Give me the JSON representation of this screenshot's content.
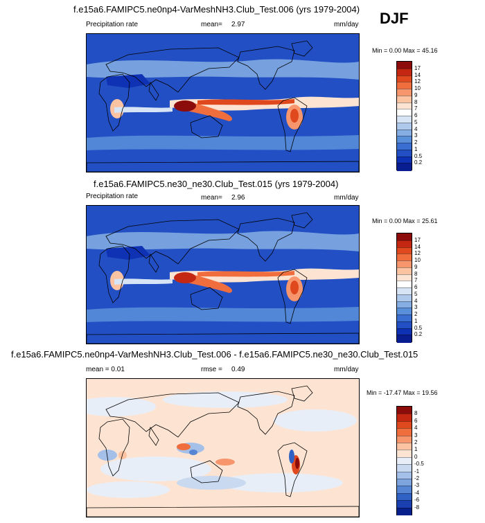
{
  "season": "DJF",
  "panels": [
    {
      "title": "f.e15a6.FAMIPC5.ne0np4-VarMeshNH3.Club_Test.006 (yrs 1979-2004)",
      "left_label": "Precipitation rate",
      "mean_label": "mean=",
      "mean_value": "2.97",
      "units": "mm/day",
      "minmax": "Min =  0.00 Max = 45.16",
      "colorbar": {
        "labels": [
          "17",
          "14",
          "12",
          "10",
          "9",
          "8",
          "7",
          "6",
          "5",
          "4",
          "3",
          "2",
          "1",
          "0.5",
          "0.2"
        ],
        "colors": [
          "#8c0c0c",
          "#c52812",
          "#e0481e",
          "#f06e3e",
          "#f7966c",
          "#fbc3a2",
          "#fde4d2",
          "#ffffff",
          "#d6e4f5",
          "#afc9ec",
          "#86aee3",
          "#5a8fd9",
          "#3a6ed0",
          "#2250c4",
          "#0f31b3",
          "#081d8f"
        ]
      },
      "mean_precip": 2.97
    },
    {
      "title": "f.e15a6.FAMIPC5.ne30_ne30.Club_Test.015 (yrs 1979-2004)",
      "left_label": "Precipitation rate",
      "mean_label": "mean=",
      "mean_value": "2.96",
      "units": "mm/day",
      "minmax": "Min =  0.00 Max = 25.61",
      "colorbar": {
        "labels": [
          "17",
          "14",
          "12",
          "10",
          "9",
          "8",
          "7",
          "6",
          "5",
          "4",
          "3",
          "2",
          "1",
          "0.5",
          "0.2"
        ],
        "colors": [
          "#8c0c0c",
          "#c52812",
          "#e0481e",
          "#f06e3e",
          "#f7966c",
          "#fbc3a2",
          "#fde4d2",
          "#ffffff",
          "#d6e4f5",
          "#afc9ec",
          "#86aee3",
          "#5a8fd9",
          "#3a6ed0",
          "#2250c4",
          "#0f31b3",
          "#081d8f"
        ]
      },
      "mean_precip": 2.96
    },
    {
      "title": "f.e15a6.FAMIPC5.ne0np4-VarMeshNH3.Club_Test.006 - f.e15a6.FAMIPC5.ne30_ne30.Club_Test.015",
      "left_label": "mean =  0.01",
      "mean_label": "rmse =",
      "mean_value": "0.49",
      "units": "mm/day",
      "minmax": "Min = -17.47 Max =  19.56",
      "colorbar": {
        "labels": [
          "8",
          "6",
          "4",
          "3",
          "2",
          "1",
          "0",
          "-0.5",
          "-1",
          "-2",
          "-3",
          "-4",
          "-6",
          "-8"
        ],
        "colors": [
          "#8c0c0c",
          "#c52812",
          "#e0481e",
          "#f06e3e",
          "#f7966c",
          "#fbc3a2",
          "#fde4d2",
          "#e8eef8",
          "#c9d9f0",
          "#a4c0e8",
          "#7ea4de",
          "#5585d3",
          "#3062c6",
          "#1a3fb0",
          "#08208c"
        ]
      },
      "mean_diff": 0.01,
      "rmse": 0.49
    }
  ],
  "chart_data": [
    {
      "type": "heatmap",
      "title": "f.e15a6.FAMIPC5.ne0np4-VarMeshNH3.Club_Test.006 (yrs 1979-2004)",
      "variable": "Precipitation rate",
      "units": "mm/day",
      "mean": 2.97,
      "min": 0.0,
      "max": 45.16,
      "contour_levels": [
        0.2,
        0.5,
        1,
        2,
        3,
        4,
        5,
        6,
        7,
        8,
        9,
        10,
        12,
        14,
        17
      ]
    },
    {
      "type": "heatmap",
      "title": "f.e15a6.FAMIPC5.ne30_ne30.Club_Test.015 (yrs 1979-2004)",
      "variable": "Precipitation rate",
      "units": "mm/day",
      "mean": 2.96,
      "min": 0.0,
      "max": 25.61,
      "contour_levels": [
        0.2,
        0.5,
        1,
        2,
        3,
        4,
        5,
        6,
        7,
        8,
        9,
        10,
        12,
        14,
        17
      ]
    },
    {
      "type": "heatmap",
      "title": "f.e15a6.FAMIPC5.ne0np4-VarMeshNH3.Club_Test.006 - f.e15a6.FAMIPC5.ne30_ne30.Club_Test.015",
      "units": "mm/day",
      "mean": 0.01,
      "rmse": 0.49,
      "min": -17.47,
      "max": 19.56,
      "contour_levels": [
        -8,
        -6,
        -4,
        -3,
        -2,
        -1,
        -0.5,
        0,
        1,
        2,
        3,
        4,
        6,
        8
      ]
    }
  ]
}
